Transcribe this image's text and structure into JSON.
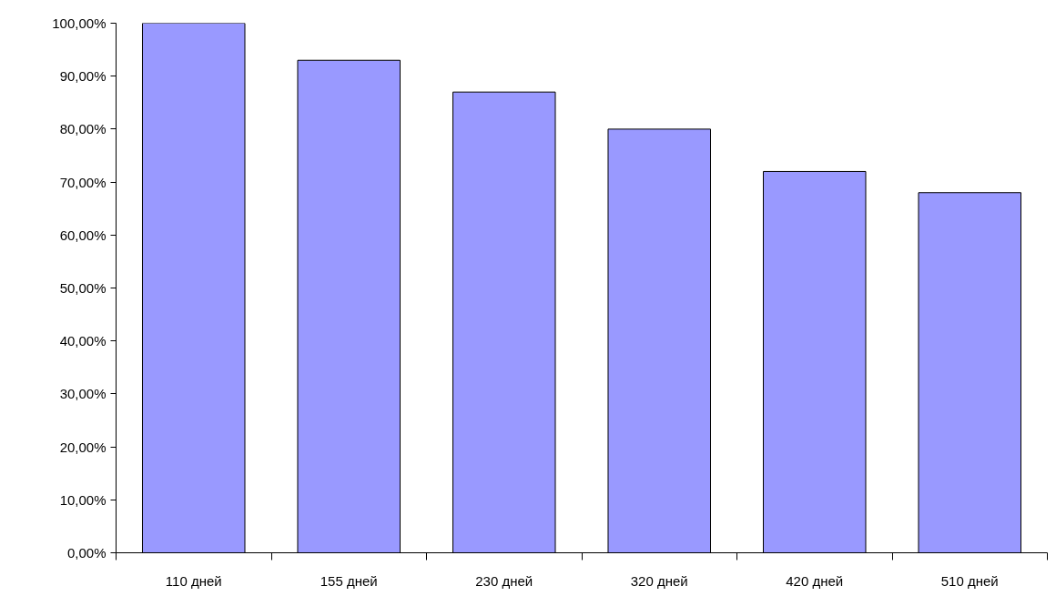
{
  "chart_data": {
    "type": "bar",
    "categories": [
      "110 дней",
      "155 дней",
      "230 дней",
      "320 дней",
      "420 дней",
      "510 дней"
    ],
    "values": [
      100,
      93,
      87,
      80,
      72,
      68
    ],
    "color": "#9999ff",
    "ylim": [
      0,
      100
    ],
    "yticks": [
      {
        "value": 0,
        "label": "0,00%"
      },
      {
        "value": 10,
        "label": "10,00%"
      },
      {
        "value": 20,
        "label": "20,00%"
      },
      {
        "value": 30,
        "label": "30,00%"
      },
      {
        "value": 40,
        "label": "40,00%"
      },
      {
        "value": 50,
        "label": "50,00%"
      },
      {
        "value": 60,
        "label": "60,00%"
      },
      {
        "value": 70,
        "label": "70,00%"
      },
      {
        "value": 80,
        "label": "80,00%"
      },
      {
        "value": 90,
        "label": "90,00%"
      },
      {
        "value": 100,
        "label": "100,00%"
      }
    ],
    "grid": false
  }
}
